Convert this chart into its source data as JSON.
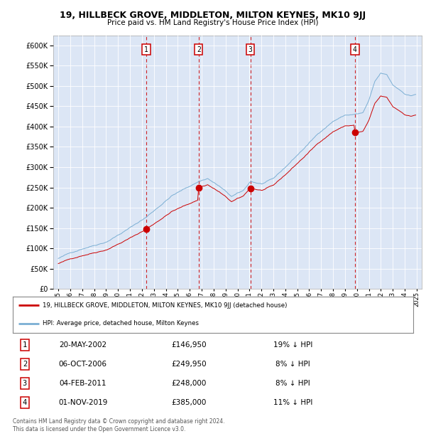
{
  "title": "19, HILLBECK GROVE, MIDDLETON, MILTON KEYNES, MK10 9JJ",
  "subtitle": "Price paid vs. HM Land Registry's House Price Index (HPI)",
  "background_color": "#dce6f5",
  "plot_bg_color": "#dce6f5",
  "ylim": [
    0,
    625000
  ],
  "yticks": [
    0,
    50000,
    100000,
    150000,
    200000,
    250000,
    300000,
    350000,
    400000,
    450000,
    500000,
    550000,
    600000
  ],
  "hpi_color": "#7bafd4",
  "price_color": "#cc0000",
  "vline_color": "#cc0000",
  "transactions": [
    {
      "label": "1",
      "date": 2002.37,
      "price": 146950
    },
    {
      "label": "2",
      "date": 2006.75,
      "price": 249950
    },
    {
      "label": "3",
      "date": 2011.08,
      "price": 248000
    },
    {
      "label": "4",
      "date": 2019.83,
      "price": 385000
    }
  ],
  "table_rows": [
    {
      "num": "1",
      "date": "20-MAY-2002",
      "price": "£146,950",
      "hpi": "19% ↓ HPI"
    },
    {
      "num": "2",
      "date": "06-OCT-2006",
      "price": "£249,950",
      "hpi": "8% ↓ HPI"
    },
    {
      "num": "3",
      "date": "04-FEB-2011",
      "price": "£248,000",
      "hpi": "8% ↓ HPI"
    },
    {
      "num": "4",
      "date": "01-NOV-2019",
      "price": "£385,000",
      "hpi": "11% ↓ HPI"
    }
  ],
  "legend_line1": "19, HILLBECK GROVE, MIDDLETON, MILTON KEYNES, MK10 9JJ (detached house)",
  "legend_line2": "HPI: Average price, detached house, Milton Keynes",
  "footnote1": "Contains HM Land Registry data © Crown copyright and database right 2024.",
  "footnote2": "This data is licensed under the Open Government Licence v3.0."
}
